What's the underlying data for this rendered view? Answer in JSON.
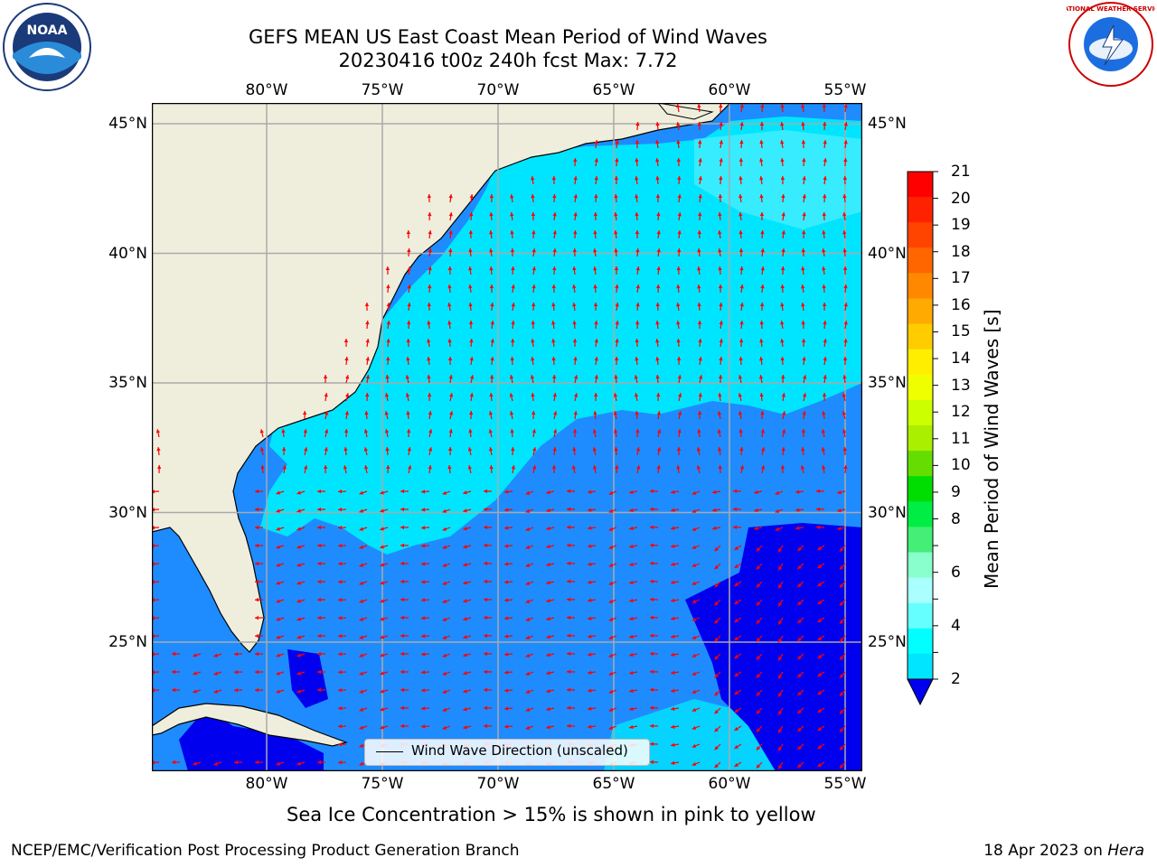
{
  "title": {
    "line1": "GEFS MEAN US East Coast Mean Period of Wind Waves",
    "line2": "20230416 t00z 240h fcst   Max: 7.72"
  },
  "map": {
    "lon_labels": [
      "80°W",
      "75°W",
      "70°W",
      "65°W",
      "60°W",
      "55°W"
    ],
    "lat_labels": [
      "45°N",
      "40°N",
      "35°N",
      "30°N",
      "25°N"
    ],
    "colors": {
      "land": "#efeedd",
      "ocean_2_4": "#1e8cff",
      "ocean_4_6": "#00e5ff",
      "ocean_6_8": "#4ef0ff",
      "ocean_below_2": "#0000ee",
      "grid": "#aaaaaa",
      "arrow": "#ff0000",
      "coast": "#000000"
    }
  },
  "legend": {
    "label": "Wind Wave Direction (unscaled)"
  },
  "colorbar": {
    "title": "Mean Period of Wind Waves [s]",
    "ticks": [
      "21",
      "20",
      "19",
      "18",
      "17",
      "16",
      "15",
      "14",
      "13",
      "12",
      "11",
      "10",
      "9",
      "8",
      "7",
      "6",
      "5",
      "4",
      "3",
      "2"
    ],
    "labels": [
      "21",
      "20",
      "19",
      "18",
      "17",
      "16",
      "15",
      "14",
      "13",
      "12",
      "11",
      "10",
      "9",
      "8",
      "6",
      "4",
      "2"
    ],
    "colors": [
      "#ff0000",
      "#ff2200",
      "#ff4400",
      "#ff6600",
      "#ff8800",
      "#ffaa00",
      "#ffcc00",
      "#ffee00",
      "#f0ff00",
      "#ccff00",
      "#aaee00",
      "#66dd00",
      "#00dd00",
      "#00ee44",
      "#44ee77",
      "#88ffcc",
      "#aaffff",
      "#66ffff",
      "#00ffff",
      "#00e5ff",
      "#1e8cff"
    ],
    "under_color": "#0000ee"
  },
  "note": "Sea Ice Concentration > 15% is shown in pink to yellow",
  "footer": {
    "left": "NCEP/EMC/Verification Post Processing Product Generation Branch",
    "right_prefix": "18 Apr 2023 on ",
    "right_host": "Hera"
  },
  "logos": {
    "left": "NOAA",
    "right": "NATIONAL WEATHER SERVICE"
  }
}
